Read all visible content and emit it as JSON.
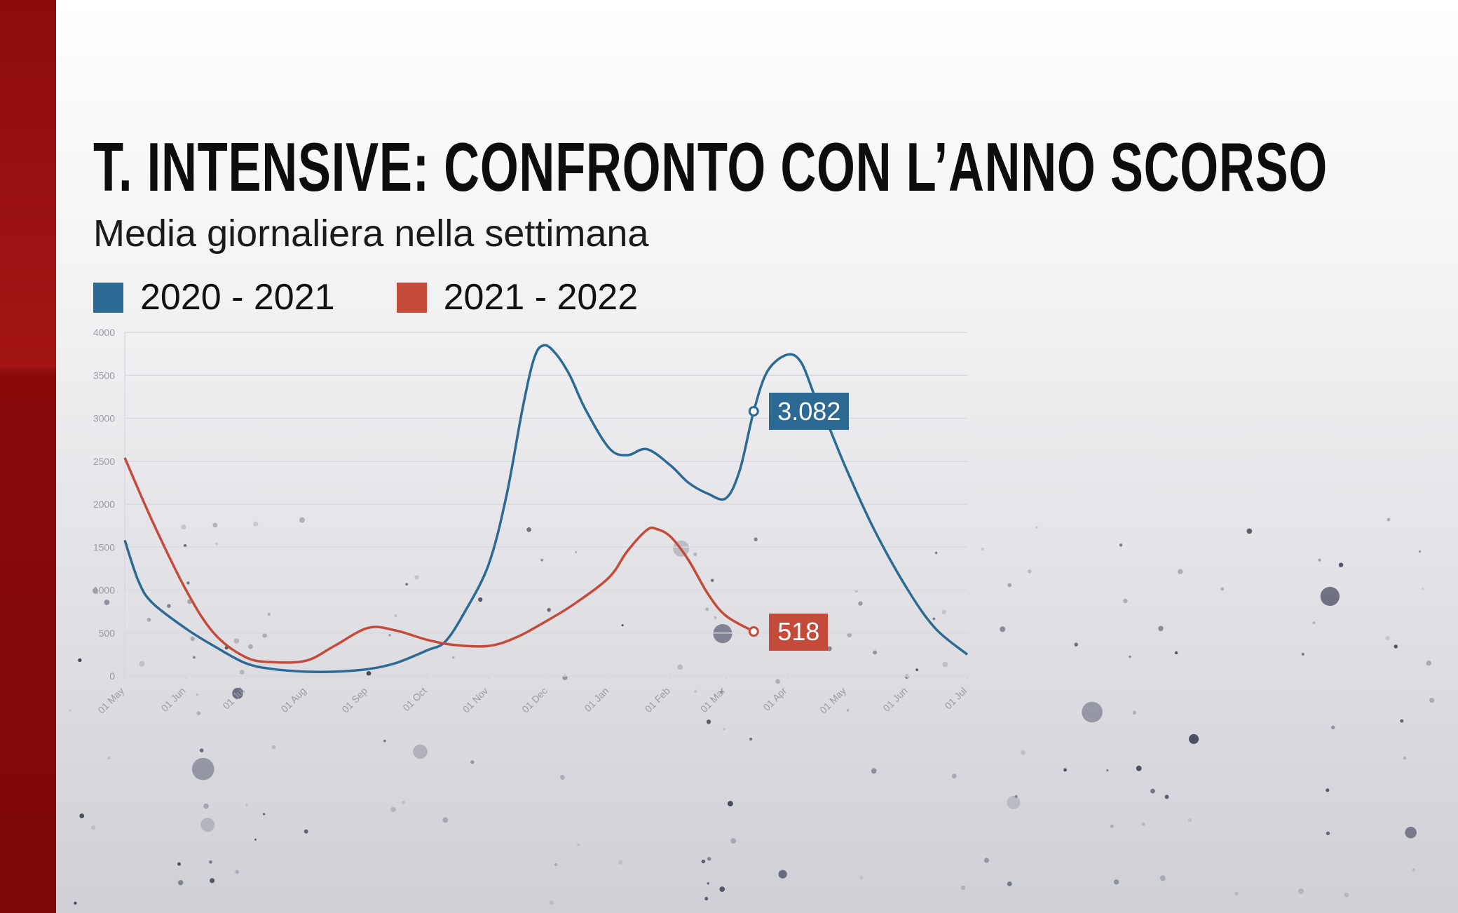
{
  "title": "T. INTENSIVE: CONFRONTO CON L’ANNO SCORSO",
  "subtitle": "Media giornaliera nella settimana",
  "colors": {
    "blue": "#2c6a94",
    "red": "#c44a3a",
    "band": "#9a1010"
  },
  "chart_data": {
    "type": "line",
    "title": "T. INTENSIVE: CONFRONTO CON L’ANNO SCORSO",
    "subtitle": "Media giornaliera nella settimana",
    "x_range": [
      "2020-05-01",
      "2021-07-01"
    ],
    "ylim": [
      0,
      4000
    ],
    "yticks": [
      "0",
      "500",
      "1000",
      "1500",
      "2000",
      "2500",
      "3000",
      "3500",
      "4000"
    ],
    "xticks": [
      "01 May",
      "01 Jun",
      "01 Jul",
      "01 Aug",
      "01 Sep",
      "01 Oct",
      "01 Nov",
      "01 Dec",
      "01 Jan",
      "01 Feb",
      "01 Mar",
      "01 Apr",
      "01 May",
      "01 Jun",
      "01 Jul"
    ],
    "grid": true,
    "legend_placement": "top-left",
    "series": [
      {
        "name": "2020 - 2021",
        "color": "#2c6a94",
        "points": [
          [
            "2020-05-01",
            1580
          ],
          [
            "2020-05-08",
            1100
          ],
          [
            "2020-05-15",
            850
          ],
          [
            "2020-06-01",
            550
          ],
          [
            "2020-06-15",
            350
          ],
          [
            "2020-07-01",
            150
          ],
          [
            "2020-07-15",
            80
          ],
          [
            "2020-08-01",
            50
          ],
          [
            "2020-08-15",
            50
          ],
          [
            "2020-09-01",
            80
          ],
          [
            "2020-09-15",
            150
          ],
          [
            "2020-10-01",
            300
          ],
          [
            "2020-10-10",
            400
          ],
          [
            "2020-10-20",
            750
          ],
          [
            "2020-11-01",
            1300
          ],
          [
            "2020-11-10",
            2100
          ],
          [
            "2020-11-18",
            3100
          ],
          [
            "2020-11-24",
            3700
          ],
          [
            "2020-11-29",
            3850
          ],
          [
            "2020-12-05",
            3750
          ],
          [
            "2020-12-12",
            3500
          ],
          [
            "2020-12-20",
            3100
          ],
          [
            "2021-01-01",
            2650
          ],
          [
            "2021-01-10",
            2570
          ],
          [
            "2021-01-20",
            2640
          ],
          [
            "2021-02-01",
            2450
          ],
          [
            "2021-02-10",
            2250
          ],
          [
            "2021-02-20",
            2120
          ],
          [
            "2021-03-01",
            2070
          ],
          [
            "2021-03-08",
            2400
          ],
          [
            "2021-03-15",
            3082
          ],
          [
            "2021-03-22",
            3550
          ],
          [
            "2021-04-01",
            3740
          ],
          [
            "2021-04-08",
            3650
          ],
          [
            "2021-04-15",
            3250
          ],
          [
            "2021-04-22",
            2900
          ],
          [
            "2021-05-01",
            2400
          ],
          [
            "2021-05-15",
            1700
          ],
          [
            "2021-06-01",
            1000
          ],
          [
            "2021-06-15",
            550
          ],
          [
            "2021-07-01",
            250
          ]
        ]
      },
      {
        "name": "2021 - 2022",
        "color": "#c44a3a",
        "points": [
          [
            "2020-05-01",
            2540
          ],
          [
            "2020-05-15",
            1800
          ],
          [
            "2020-06-01",
            1000
          ],
          [
            "2020-06-15",
            500
          ],
          [
            "2020-07-01",
            220
          ],
          [
            "2020-07-15",
            160
          ],
          [
            "2020-08-01",
            180
          ],
          [
            "2020-08-15",
            350
          ],
          [
            "2020-09-01",
            560
          ],
          [
            "2020-09-15",
            530
          ],
          [
            "2020-10-01",
            420
          ],
          [
            "2020-10-15",
            360
          ],
          [
            "2020-11-01",
            350
          ],
          [
            "2020-11-15",
            450
          ],
          [
            "2020-12-01",
            650
          ],
          [
            "2020-12-15",
            850
          ],
          [
            "2021-01-01",
            1150
          ],
          [
            "2021-01-10",
            1450
          ],
          [
            "2021-01-20",
            1700
          ],
          [
            "2021-01-25",
            1710
          ],
          [
            "2021-02-01",
            1620
          ],
          [
            "2021-02-10",
            1350
          ],
          [
            "2021-02-20",
            950
          ],
          [
            "2021-03-01",
            700
          ],
          [
            "2021-03-15",
            518
          ]
        ]
      }
    ],
    "annotations": [
      {
        "series": "2020 - 2021",
        "date": "2021-03-15",
        "value": 3082,
        "label": "3.082"
      },
      {
        "series": "2021 - 2022",
        "date": "2021-03-15",
        "value": 518,
        "label": "518"
      }
    ]
  }
}
